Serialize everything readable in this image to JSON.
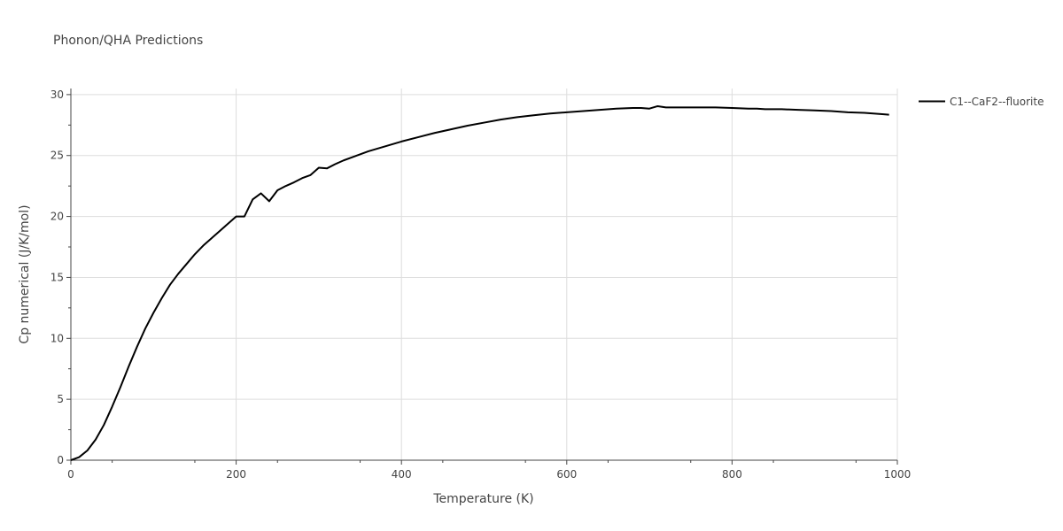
{
  "chart_data": {
    "type": "line",
    "title": "Phonon/QHA Predictions",
    "xlabel": "Temperature (K)",
    "ylabel": "Cp numerical (J/K/mol)",
    "xlim": [
      0,
      1000
    ],
    "ylim": [
      0,
      30.5
    ],
    "xticks": [
      0,
      200,
      400,
      600,
      800,
      1000
    ],
    "yticks": [
      0,
      5,
      10,
      15,
      20,
      25,
      30
    ],
    "grid": true,
    "legend_position": "top-right",
    "series": [
      {
        "name": "C1--CaF2--fluorite",
        "color": "#000000",
        "x": [
          0,
          10,
          20,
          30,
          40,
          50,
          60,
          70,
          80,
          90,
          100,
          110,
          120,
          130,
          140,
          150,
          160,
          170,
          180,
          190,
          200,
          210,
          220,
          230,
          240,
          250,
          260,
          270,
          280,
          290,
          300,
          310,
          320,
          330,
          340,
          360,
          380,
          400,
          420,
          440,
          460,
          480,
          500,
          520,
          540,
          560,
          580,
          600,
          620,
          640,
          660,
          680,
          690,
          700,
          710,
          720,
          740,
          760,
          780,
          800,
          820,
          830,
          840,
          860,
          880,
          900,
          920,
          940,
          960,
          980,
          990
        ],
        "y": [
          0,
          0.25,
          0.8,
          1.7,
          2.9,
          4.4,
          6.0,
          7.7,
          9.3,
          10.8,
          12.1,
          13.3,
          14.4,
          15.3,
          16.1,
          16.9,
          17.6,
          18.2,
          18.8,
          19.4,
          20.0,
          20.0,
          21.4,
          21.9,
          21.25,
          22.15,
          22.5,
          22.8,
          23.15,
          23.4,
          24.0,
          23.95,
          24.3,
          24.6,
          24.85,
          25.35,
          25.75,
          26.15,
          26.5,
          26.85,
          27.15,
          27.45,
          27.7,
          27.95,
          28.15,
          28.3,
          28.45,
          28.55,
          28.65,
          28.75,
          28.85,
          28.9,
          28.9,
          28.85,
          29.05,
          28.95,
          28.95,
          28.95,
          28.95,
          28.9,
          28.85,
          28.85,
          28.8,
          28.8,
          28.75,
          28.7,
          28.65,
          28.55,
          28.5,
          28.4,
          28.35
        ]
      }
    ]
  }
}
